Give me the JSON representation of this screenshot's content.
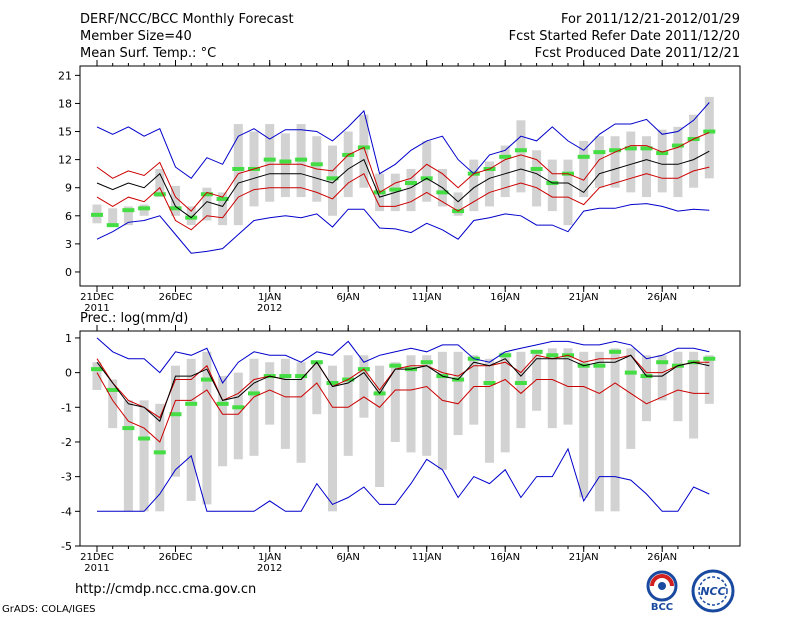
{
  "header": {
    "title": "DERF/NCC/BCC Monthly Forecast",
    "member_size": "Member Size=40",
    "variable": "Mean Surf. Temp.: °C",
    "forecast_period": "For 2011/12/21-2012/01/29",
    "fcst_started": "Fcst Started Refer Date 2011/12/20",
    "fcst_produced": "Fcst Produced Date 2011/12/21"
  },
  "footer": {
    "url": "http://cmdp.ncc.cma.gov.cn",
    "grads": "GrADS: COLA/IGES",
    "logo_bcc": "BCC",
    "logo_ncc": "NCC"
  },
  "colors": {
    "envelope": "#0000cc",
    "spread": "#cc0000",
    "mean": "#000000",
    "obs": "#44dd44",
    "box": "#d2d2d2"
  },
  "chart_data": [
    {
      "type": "line",
      "title": "Mean Surf. Temp.: °C",
      "ylim": [
        -1.5,
        22
      ],
      "yticks": [
        0,
        3,
        6,
        9,
        12,
        15,
        18,
        21
      ],
      "xticks": [
        {
          "day": 1,
          "label": "21DEC",
          "sub": "2011"
        },
        {
          "day": 6,
          "label": "26DEC",
          "sub": ""
        },
        {
          "day": 12,
          "label": "1JAN",
          "sub": "2012"
        },
        {
          "day": 17,
          "label": "6JAN",
          "sub": ""
        },
        {
          "day": 22,
          "label": "11JAN",
          "sub": ""
        },
        {
          "day": 27,
          "label": "16JAN",
          "sub": ""
        },
        {
          "day": 32,
          "label": "21JAN",
          "sub": ""
        },
        {
          "day": 37,
          "label": "26JAN",
          "sub": ""
        }
      ],
      "days": [
        1,
        2,
        3,
        4,
        5,
        6,
        7,
        8,
        9,
        10,
        11,
        12,
        13,
        14,
        15,
        16,
        17,
        18,
        19,
        20,
        21,
        22,
        23,
        24,
        25,
        26,
        27,
        28,
        29,
        30,
        31,
        32,
        33,
        34,
        35,
        36,
        37,
        38,
        39,
        40
      ],
      "max": [
        15.5,
        14.7,
        15.5,
        14.5,
        15.3,
        11.2,
        10.0,
        12.2,
        11.5,
        14.5,
        15.3,
        14.2,
        15.2,
        15.2,
        15.0,
        14.0,
        15.5,
        17.2,
        10.5,
        11.5,
        13.0,
        14.0,
        14.5,
        12.0,
        10.5,
        12.5,
        13.0,
        14.5,
        14.0,
        15.5,
        14.0,
        13.0,
        14.7,
        15.8,
        15.8,
        16.3,
        14.7,
        15.0,
        16.2,
        18.1
      ],
      "upper": [
        11.2,
        10.0,
        10.8,
        10.3,
        11.7,
        8.0,
        6.5,
        8.5,
        8.0,
        10.5,
        11.0,
        11.5,
        11.5,
        11.5,
        11.0,
        10.8,
        12.5,
        13.3,
        8.5,
        9.5,
        10.0,
        11.5,
        10.5,
        9.0,
        10.5,
        11.0,
        12.0,
        12.5,
        12.0,
        10.5,
        10.5,
        9.8,
        12.0,
        12.8,
        13.5,
        13.5,
        12.8,
        13.3,
        14.2,
        14.9
      ],
      "mean": [
        9.5,
        8.8,
        9.5,
        9.0,
        10.5,
        7.0,
        5.8,
        7.5,
        7.0,
        9.5,
        10.0,
        10.5,
        10.5,
        10.5,
        10.0,
        9.5,
        11.0,
        12.0,
        8.0,
        8.5,
        9.0,
        10.0,
        9.0,
        7.5,
        9.0,
        10.0,
        10.5,
        11.0,
        10.5,
        9.5,
        9.5,
        8.5,
        10.5,
        11.0,
        11.5,
        12.0,
        11.5,
        11.5,
        12.0,
        12.9
      ],
      "lower": [
        8.0,
        7.0,
        8.0,
        7.5,
        9.0,
        5.5,
        4.5,
        6.0,
        5.8,
        8.0,
        8.8,
        9.0,
        9.0,
        9.0,
        8.5,
        7.8,
        9.5,
        10.5,
        7.0,
        7.0,
        7.5,
        8.5,
        7.5,
        6.5,
        7.5,
        8.5,
        9.0,
        9.5,
        9.0,
        8.0,
        8.0,
        7.2,
        9.0,
        9.5,
        10.0,
        10.5,
        10.0,
        10.0,
        10.8,
        11.2
      ],
      "min": [
        3.5,
        4.3,
        5.3,
        5.5,
        6.0,
        4.0,
        2.0,
        2.2,
        2.5,
        4.0,
        5.5,
        5.8,
        6.0,
        5.8,
        6.2,
        4.8,
        6.7,
        6.7,
        4.7,
        4.6,
        4.2,
        5.2,
        4.5,
        3.5,
        5.5,
        5.8,
        6.2,
        6.0,
        5.0,
        5.0,
        4.3,
        6.5,
        6.8,
        6.8,
        7.2,
        7.3,
        7.0,
        6.5,
        6.7,
        6.6
      ],
      "box_hi": [
        7.2,
        6.8,
        7.0,
        7.2,
        11.0,
        9.2,
        7.0,
        9.0,
        8.5,
        15.8,
        15.0,
        15.8,
        14.8,
        15.8,
        14.5,
        13.5,
        15.0,
        16.8,
        10.5,
        10.5,
        11.0,
        14.0,
        11.0,
        8.5,
        12.0,
        11.8,
        13.5,
        16.2,
        13.0,
        12.0,
        12.0,
        14.0,
        14.5,
        14.5,
        15.0,
        14.5,
        15.2,
        15.5,
        16.8,
        18.7
      ],
      "box_lo": [
        5.2,
        4.8,
        5.0,
        6.0,
        8.0,
        6.0,
        5.0,
        5.5,
        5.0,
        5.0,
        7.0,
        7.5,
        8.0,
        8.0,
        7.5,
        6.0,
        8.0,
        9.0,
        6.5,
        6.5,
        6.5,
        7.5,
        7.0,
        6.0,
        6.5,
        7.0,
        8.0,
        8.5,
        7.0,
        6.5,
        5.0,
        8.0,
        9.0,
        9.0,
        8.5,
        8.0,
        8.5,
        8.0,
        9.0,
        10.0
      ],
      "obs": [
        6.1,
        5.0,
        6.6,
        6.8,
        8.3,
        6.8,
        5.8,
        8.3,
        7.8,
        11.0,
        11.0,
        12.0,
        11.8,
        12.0,
        11.5,
        10.0,
        12.5,
        13.3,
        8.5,
        8.8,
        9.5,
        10.0,
        8.5,
        6.5,
        10.5,
        11.0,
        12.3,
        13.0,
        11.0,
        9.5,
        10.5,
        12.3,
        12.8,
        13.0,
        13.2,
        13.2,
        12.7,
        13.5,
        14.2,
        15.0
      ]
    },
    {
      "type": "line",
      "title": "Prec.: log(mm/d)",
      "ylim": [
        -5,
        1.2
      ],
      "yticks": [
        -5,
        -4,
        -3,
        -2,
        -1,
        0,
        1
      ],
      "xticks": [
        {
          "day": 1,
          "label": "21DEC",
          "sub": "2011"
        },
        {
          "day": 6,
          "label": "26DEC",
          "sub": ""
        },
        {
          "day": 12,
          "label": "1JAN",
          "sub": "2012"
        },
        {
          "day": 17,
          "label": "6JAN",
          "sub": ""
        },
        {
          "day": 22,
          "label": "11JAN",
          "sub": ""
        },
        {
          "day": 27,
          "label": "16JAN",
          "sub": ""
        },
        {
          "day": 32,
          "label": "21JAN",
          "sub": ""
        },
        {
          "day": 37,
          "label": "26JAN",
          "sub": ""
        }
      ],
      "days": [
        1,
        2,
        3,
        4,
        5,
        6,
        7,
        8,
        9,
        10,
        11,
        12,
        13,
        14,
        15,
        16,
        17,
        18,
        19,
        20,
        21,
        22,
        23,
        24,
        25,
        26,
        27,
        28,
        29,
        30,
        31,
        32,
        33,
        34,
        35,
        36,
        37,
        38,
        39,
        40
      ],
      "max": [
        1.0,
        0.6,
        0.4,
        0.4,
        0.0,
        0.6,
        0.5,
        0.7,
        -0.3,
        0.3,
        0.6,
        0.5,
        0.5,
        0.3,
        0.6,
        0.5,
        0.9,
        0.3,
        0.5,
        0.6,
        0.7,
        0.6,
        0.8,
        0.8,
        0.4,
        0.3,
        0.6,
        0.7,
        0.8,
        0.9,
        0.9,
        0.8,
        0.8,
        0.9,
        0.8,
        0.4,
        0.5,
        0.7,
        0.7,
        0.6
      ],
      "upper": [
        0.4,
        -0.3,
        -0.8,
        -1.0,
        -1.3,
        -0.2,
        -0.2,
        0.2,
        -0.8,
        -0.6,
        -0.2,
        -0.1,
        -0.2,
        -0.2,
        0.3,
        -0.4,
        -0.2,
        0.1,
        -0.5,
        0.1,
        0.2,
        0.2,
        0.0,
        -0.1,
        0.2,
        0.2,
        0.3,
        0.0,
        0.5,
        0.4,
        0.5,
        0.3,
        0.4,
        0.4,
        0.5,
        0.0,
        0.0,
        0.2,
        0.3,
        0.3
      ],
      "mean": [
        0.3,
        -0.3,
        -0.9,
        -1.0,
        -1.4,
        -0.1,
        -0.1,
        0.1,
        -0.8,
        -0.7,
        -0.3,
        -0.1,
        -0.2,
        -0.2,
        0.3,
        -0.4,
        -0.3,
        0.0,
        -0.6,
        0.1,
        0.1,
        0.2,
        -0.1,
        -0.2,
        0.3,
        0.2,
        0.4,
        -0.1,
        0.4,
        0.4,
        0.4,
        0.2,
        0.3,
        0.3,
        0.5,
        -0.1,
        -0.1,
        0.2,
        0.3,
        0.2
      ],
      "lower": [
        0.0,
        -0.8,
        -1.4,
        -1.6,
        -2.0,
        -0.8,
        -0.8,
        -0.5,
        -1.2,
        -1.2,
        -0.7,
        -0.5,
        -0.7,
        -0.7,
        -0.3,
        -1.0,
        -1.0,
        -0.7,
        -1.0,
        -0.5,
        -0.5,
        -0.4,
        -0.8,
        -0.9,
        -0.4,
        -0.4,
        -0.2,
        -0.6,
        -0.2,
        -0.2,
        -0.4,
        -0.4,
        -0.6,
        -0.3,
        -0.6,
        -0.9,
        -0.7,
        -0.5,
        -0.6,
        -0.6
      ],
      "min": [
        -4.0,
        -4.0,
        -4.0,
        -4.0,
        -3.5,
        -2.8,
        -2.4,
        -4.0,
        -4.0,
        -4.0,
        -4.0,
        -3.7,
        -4.0,
        -4.0,
        -3.2,
        -3.8,
        -3.6,
        -3.3,
        -3.8,
        -3.8,
        -3.2,
        -2.5,
        -2.8,
        -3.6,
        -3.0,
        -3.2,
        -2.8,
        -3.6,
        -3.0,
        -3.0,
        -2.2,
        -3.7,
        -3.0,
        -3.0,
        -3.1,
        -3.5,
        -4.0,
        -4.0,
        -3.3,
        -3.5
      ],
      "box_hi": [
        0.3,
        -0.2,
        -0.8,
        -0.8,
        -0.9,
        0.2,
        0.4,
        0.6,
        -0.1,
        0.0,
        0.4,
        0.3,
        0.4,
        0.3,
        0.3,
        0.2,
        0.5,
        0.5,
        0.2,
        0.3,
        0.5,
        0.5,
        0.6,
        0.6,
        0.5,
        0.4,
        0.6,
        0.6,
        0.6,
        0.7,
        0.7,
        0.6,
        0.6,
        0.7,
        0.7,
        0.5,
        0.5,
        0.6,
        0.6,
        0.5
      ],
      "box_lo": [
        -0.5,
        -1.6,
        -4.0,
        -4.0,
        -4.0,
        -3.0,
        -3.7,
        -3.8,
        -2.7,
        -2.5,
        -2.4,
        -1.5,
        -2.2,
        -2.6,
        -1.2,
        -4.0,
        -2.4,
        -1.3,
        -3.3,
        -2.0,
        -2.3,
        -2.4,
        -2.8,
        -1.8,
        -1.5,
        -2.6,
        -2.3,
        -1.6,
        -1.1,
        -1.6,
        -1.5,
        -3.6,
        -4.0,
        -4.0,
        -2.2,
        -1.4,
        -0.8,
        -1.4,
        -1.9,
        -0.9
      ],
      "obs": [
        0.1,
        -0.5,
        -1.6,
        -1.9,
        -2.3,
        -1.2,
        -0.9,
        -0.2,
        -0.9,
        -1.0,
        -0.6,
        -0.1,
        -0.1,
        -0.1,
        0.3,
        -0.3,
        -0.2,
        0.1,
        -0.6,
        0.2,
        0.1,
        0.3,
        -0.1,
        -0.2,
        0.4,
        -0.3,
        0.5,
        -0.3,
        0.6,
        0.5,
        0.5,
        0.2,
        0.2,
        0.6,
        0.0,
        -0.1,
        0.3,
        0.2,
        0.3,
        0.4
      ]
    }
  ]
}
